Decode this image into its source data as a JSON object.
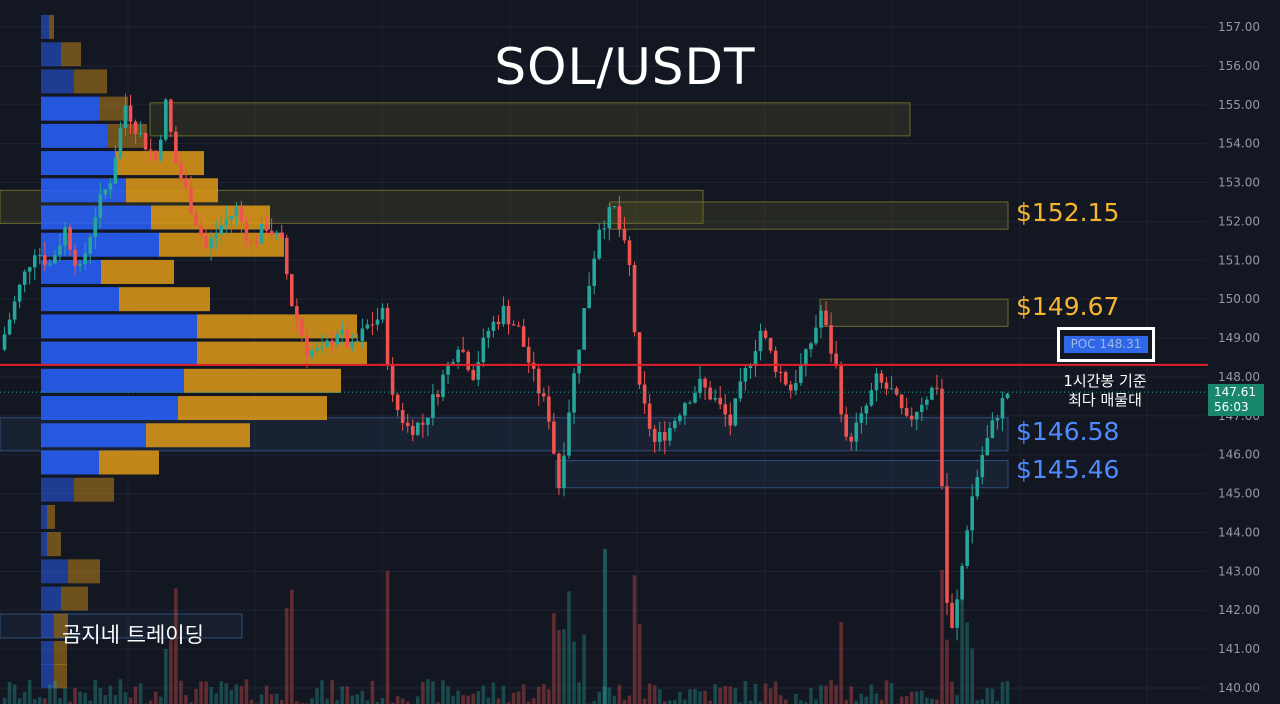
{
  "title": "SOL/USDT",
  "watermark": "곰지네 트레이딩",
  "levels": {
    "resistance_1": "$152.15",
    "resistance_2": "$149.67",
    "support_1": "$146.58",
    "support_2": "$145.46"
  },
  "poc_label": "POC  148.31",
  "poc_note_line1": "1시간봉 기준",
  "poc_note_line2": "최다 매물대",
  "price_tag": {
    "price": "147.61",
    "countdown": "56:03"
  },
  "colors": {
    "background": "#131722",
    "up": "#26a69a",
    "down": "#ef5350",
    "vp_buy": "#2962ff",
    "vp_sell": "#e09a18",
    "poc_line": "#e0202a",
    "resistance_text": "#f5b531",
    "support_text": "#4f8bff"
  },
  "chart_data": {
    "type": "candlestick",
    "title": "SOL/USDT",
    "ylim": [
      139.9,
      157.35
    ],
    "y_ticks": [
      "157.00",
      "156.00",
      "155.00",
      "154.00",
      "153.00",
      "152.00",
      "151.00",
      "150.00",
      "149.00",
      "148.00",
      "147.00",
      "146.00",
      "145.00",
      "144.00",
      "143.00",
      "142.00",
      "141.00",
      "140.00"
    ],
    "poc": 148.31,
    "last_price": 147.61,
    "horizontal_levels": [
      152.15,
      149.67,
      146.58,
      145.46
    ],
    "zones": [
      {
        "kind": "resistance",
        "from": 154.2,
        "to": 155.05
      },
      {
        "kind": "resistance",
        "from": 151.95,
        "to": 152.8
      },
      {
        "kind": "resistance",
        "from": 151.8,
        "to": 152.5
      },
      {
        "kind": "resistance",
        "from": 149.3,
        "to": 150.0
      },
      {
        "kind": "support",
        "from": 146.1,
        "to": 146.95
      },
      {
        "kind": "support",
        "from": 145.15,
        "to": 145.85
      }
    ],
    "close_path": [
      [
        0,
        148.7
      ],
      [
        0.02,
        150.3
      ],
      [
        0.035,
        151.3
      ],
      [
        0.05,
        150.9
      ],
      [
        0.065,
        151.8
      ],
      [
        0.08,
        150.7
      ],
      [
        0.095,
        152.2
      ],
      [
        0.11,
        153.1
      ],
      [
        0.125,
        155.0
      ],
      [
        0.14,
        154.2
      ],
      [
        0.155,
        153.6
      ],
      [
        0.165,
        155.0
      ],
      [
        0.175,
        153.5
      ],
      [
        0.19,
        152.4
      ],
      [
        0.205,
        151.3
      ],
      [
        0.22,
        151.9
      ],
      [
        0.235,
        152.3
      ],
      [
        0.25,
        151.4
      ],
      [
        0.265,
        151.9
      ],
      [
        0.28,
        151.4
      ],
      [
        0.29,
        149.9
      ],
      [
        0.305,
        148.7
      ],
      [
        0.32,
        148.6
      ],
      [
        0.335,
        149.2
      ],
      [
        0.35,
        148.7
      ],
      [
        0.365,
        149.3
      ],
      [
        0.38,
        149.6
      ],
      [
        0.39,
        147.4
      ],
      [
        0.405,
        146.7
      ],
      [
        0.42,
        146.8
      ],
      [
        0.44,
        148.0
      ],
      [
        0.455,
        148.9
      ],
      [
        0.47,
        148.1
      ],
      [
        0.485,
        149.2
      ],
      [
        0.5,
        149.7
      ],
      [
        0.515,
        149.2
      ],
      [
        0.53,
        148.0
      ],
      [
        0.545,
        147.0
      ],
      [
        0.555,
        145.2
      ],
      [
        0.565,
        147.2
      ],
      [
        0.58,
        149.7
      ],
      [
        0.595,
        151.9
      ],
      [
        0.61,
        152.3
      ],
      [
        0.625,
        150.8
      ],
      [
        0.635,
        147.6
      ],
      [
        0.65,
        146.3
      ],
      [
        0.665,
        146.7
      ],
      [
        0.68,
        147.4
      ],
      [
        0.695,
        147.8
      ],
      [
        0.71,
        147.4
      ],
      [
        0.725,
        146.8
      ],
      [
        0.74,
        148.1
      ],
      [
        0.755,
        149.2
      ],
      [
        0.77,
        148.3
      ],
      [
        0.785,
        147.7
      ],
      [
        0.8,
        148.5
      ],
      [
        0.815,
        149.7
      ],
      [
        0.83,
        148.2
      ],
      [
        0.84,
        146.3
      ],
      [
        0.855,
        146.9
      ],
      [
        0.87,
        147.9
      ],
      [
        0.885,
        147.6
      ],
      [
        0.9,
        146.8
      ],
      [
        0.915,
        147.4
      ],
      [
        0.93,
        147.8
      ],
      [
        0.935,
        145.2
      ],
      [
        0.942,
        141.0
      ],
      [
        0.952,
        142.5
      ],
      [
        0.962,
        144.6
      ],
      [
        0.975,
        146.0
      ],
      [
        0.99,
        147.1
      ],
      [
        1,
        147.6
      ]
    ],
    "volume_profile": [
      {
        "price": 157.0,
        "buy": 8,
        "sell": 5
      },
      {
        "price": 156.3,
        "buy": 20,
        "sell": 20
      },
      {
        "price": 155.6,
        "buy": 33,
        "sell": 33
      },
      {
        "price": 154.9,
        "buy": 58,
        "sell": 29
      },
      {
        "price": 154.2,
        "buy": 66,
        "sell": 40
      },
      {
        "price": 153.5,
        "buy": 75,
        "sell": 88
      },
      {
        "price": 152.8,
        "buy": 85,
        "sell": 92
      },
      {
        "price": 152.1,
        "buy": 110,
        "sell": 119
      },
      {
        "price": 151.4,
        "buy": 118,
        "sell": 125
      },
      {
        "price": 150.7,
        "buy": 60,
        "sell": 73
      },
      {
        "price": 150.0,
        "buy": 78,
        "sell": 91
      },
      {
        "price": 149.3,
        "buy": 156,
        "sell": 160
      },
      {
        "price": 148.6,
        "buy": 156,
        "sell": 170
      },
      {
        "price": 147.9,
        "buy": 143,
        "sell": 157
      },
      {
        "price": 147.2,
        "buy": 137,
        "sell": 149
      },
      {
        "price": 146.5,
        "buy": 105,
        "sell": 104
      },
      {
        "price": 145.8,
        "buy": 58,
        "sell": 60
      },
      {
        "price": 145.1,
        "buy": 33,
        "sell": 40
      },
      {
        "price": 144.4,
        "buy": 6,
        "sell": 8
      },
      {
        "price": 143.7,
        "buy": 6,
        "sell": 14
      },
      {
        "price": 143.0,
        "buy": 27,
        "sell": 32
      },
      {
        "price": 142.3,
        "buy": 20,
        "sell": 27
      },
      {
        "price": 141.6,
        "buy": 13,
        "sell": 14
      },
      {
        "price": 140.9,
        "buy": 13,
        "sell": 13
      },
      {
        "price": 140.3,
        "buy": 13,
        "sell": 13
      }
    ]
  }
}
